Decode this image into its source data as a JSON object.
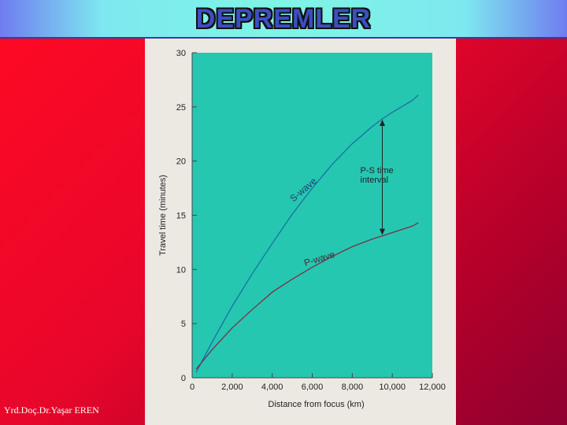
{
  "header": {
    "title": "DEPREMLER"
  },
  "footer": {
    "credit": "Yrd.Doç.Dr.Yaşar EREN"
  },
  "colors": {
    "plot_bg": "#26c7b0",
    "s_wave": "#1a6ea8",
    "p_wave": "#7a3048",
    "frame": "#ece9e2"
  },
  "chart_data": {
    "type": "line",
    "xlabel": "Distance from focus (km)",
    "ylabel": "Travel time (minutes)",
    "xlim": [
      0,
      12000
    ],
    "ylim": [
      0,
      30
    ],
    "x_ticks": [
      "0",
      "2,000",
      "4,000",
      "6,000",
      "8,000",
      "10,000",
      "12,000"
    ],
    "y_ticks": [
      "0",
      "5",
      "10",
      "15",
      "20",
      "25",
      "30"
    ],
    "grid": false,
    "series": [
      {
        "name": "S-wave",
        "x": [
          200,
          1000,
          2000,
          3000,
          4000,
          5000,
          6000,
          7000,
          8000,
          9000,
          9500,
          10000,
          11000,
          11300
        ],
        "y": [
          0.5,
          3.3,
          6.6,
          9.6,
          12.4,
          15.1,
          17.5,
          19.7,
          21.6,
          23.2,
          23.9,
          24.5,
          25.6,
          26.1
        ]
      },
      {
        "name": "P-wave",
        "x": [
          200,
          1000,
          2000,
          3000,
          4000,
          5000,
          6000,
          7000,
          8000,
          9000,
          9500,
          10000,
          11000,
          11300
        ],
        "y": [
          0.8,
          2.6,
          4.6,
          6.3,
          7.9,
          9.1,
          10.2,
          11.2,
          12.1,
          12.8,
          13.1,
          13.4,
          14.0,
          14.3
        ]
      }
    ],
    "annotation": {
      "label_line1": "P-S time",
      "label_line2": "interval",
      "x": 9500,
      "y_top": 23.9,
      "y_bottom": 13.1
    }
  }
}
